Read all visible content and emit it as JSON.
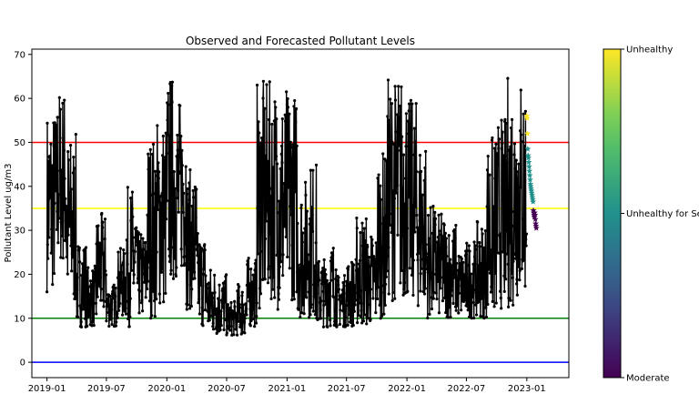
{
  "chart_data": {
    "type": "line",
    "title": "Observed and Forecasted Pollutant Levels",
    "xlabel": "",
    "ylabel": "Pollutant Level ug/m3",
    "ylim": [
      -3.5,
      71.2
    ],
    "xlim": [
      "2018-11-16",
      "2023-05-09"
    ],
    "x_ticks": [
      "2019-01",
      "2019-07",
      "2020-01",
      "2020-07",
      "2021-01",
      "2021-07",
      "2022-01",
      "2022-07",
      "2023-01"
    ],
    "y_ticks": [
      0,
      10,
      20,
      30,
      40,
      50,
      60,
      70
    ],
    "grid": false,
    "thresholds": [
      {
        "value": 50,
        "color": "#ff0000"
      },
      {
        "value": 35,
        "color": "#ffff00"
      },
      {
        "value": 10,
        "color": "#008000"
      },
      {
        "value": 0,
        "color": "#0000ff"
      }
    ],
    "observed": {
      "color": "#000000",
      "start_date": "2019-01-01",
      "end_date": "2022-12-31",
      "monthly_peak": [
        58,
        63,
        52,
        28,
        22,
        34,
        18,
        26,
        40,
        30,
        52,
        56,
        66,
        60,
        44,
        30,
        22,
        20,
        14,
        18,
        24,
        64,
        64,
        63,
        62,
        42,
        46,
        24,
        28,
        20,
        24,
        34,
        30,
        48,
        65,
        66,
        60,
        52,
        36,
        34,
        32,
        26,
        28,
        32,
        52,
        56,
        66,
        66
      ],
      "monthly_low": [
        16,
        22,
        12,
        8,
        8,
        10,
        8,
        10,
        8,
        10,
        10,
        12,
        18,
        20,
        12,
        8,
        6,
        6,
        6,
        6,
        8,
        12,
        14,
        12,
        14,
        10,
        10,
        8,
        8,
        8,
        8,
        8,
        8,
        10,
        14,
        14,
        14,
        12,
        10,
        10,
        10,
        10,
        10,
        10,
        10,
        12,
        12,
        14
      ]
    },
    "forecast": {
      "start_date": "2023-01-01",
      "days": 30,
      "values": [
        56,
        55.5,
        52,
        48.5,
        47,
        46.5,
        45.5,
        44.5,
        43.5,
        42.5,
        41.5,
        40.5,
        40,
        39.5,
        39,
        38.5,
        38,
        37.5,
        37,
        36.5,
        34.5,
        34,
        33.5,
        33,
        34,
        33.5,
        32.5,
        31.5,
        31,
        30.5
      ],
      "marker": "star"
    },
    "colorbar": {
      "labels": [
        {
          "text": "Unhealthy",
          "position": 1.0
        },
        {
          "text": "Unhealthy for Sensitive Groups",
          "position": 0.5
        },
        {
          "text": "Moderate",
          "position": 0.0
        }
      ],
      "colormap": "viridis"
    }
  }
}
